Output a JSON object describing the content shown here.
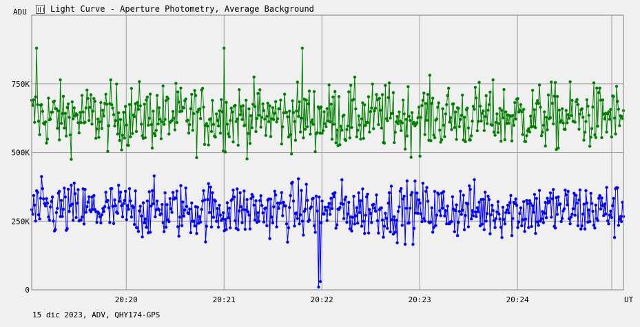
{
  "window": {
    "title": "Light Curve - Aperture Photometry, Average Background",
    "icon": "light-curve-icon"
  },
  "footer": {
    "caption": "15 dic 2023, ADV, QHY174-GPS"
  },
  "chart_data": {
    "type": "line",
    "title": "Light Curve - Aperture Photometry, Average Background",
    "xlabel": "UT",
    "ylabel": "ADU",
    "x_range": [
      "20:19:02",
      "20:25:05"
    ],
    "ylim": [
      0,
      1000000
    ],
    "x_ticks": [
      "20:20",
      "20:21",
      "20:22",
      "20:23",
      "20:24"
    ],
    "y_ticks": [
      {
        "value": 0,
        "label": "0"
      },
      {
        "value": 250000,
        "label": "250K"
      },
      {
        "value": 500000,
        "label": "500K"
      },
      {
        "value": 750000,
        "label": "750K"
      }
    ],
    "grid": true,
    "marker": "circle",
    "series": [
      {
        "color": "#008000",
        "mean": 630000,
        "spread": 65000,
        "samples": 600,
        "notable_points": [
          {
            "x": "20:19:05",
            "y": 880000
          },
          {
            "x": "20:21:00",
            "y": 880000
          },
          {
            "x": "20:21:48",
            "y": 880000
          }
        ]
      },
      {
        "color": "#0000ff",
        "mean": 290000,
        "spread": 55000,
        "samples": 600,
        "notable_points": [
          {
            "x": "20:21:58",
            "y": 10000
          },
          {
            "x": "20:21:59",
            "y": 30000
          }
        ]
      }
    ]
  }
}
